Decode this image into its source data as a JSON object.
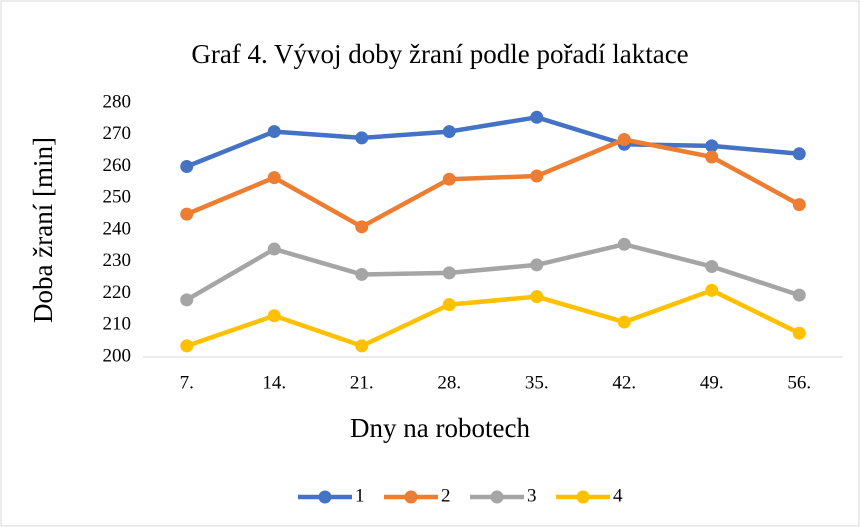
{
  "chart_data": {
    "type": "line",
    "title": "Graf 4. Vývoj doby žraní podle pořadí laktace",
    "x_label": "Dny na robotech",
    "y_label": "Doba žraní [min]",
    "categories": [
      "7.",
      "14.",
      "21.",
      "28.",
      "35.",
      "42.",
      "49.",
      "56."
    ],
    "series": [
      {
        "name": "1",
        "color": "#4472c4",
        "values": [
          260,
          271,
          269,
          271,
          275.5,
          267,
          266.5,
          264
        ]
      },
      {
        "name": "2",
        "color": "#ed7d31",
        "values": [
          245,
          256.5,
          241,
          256,
          257,
          268.5,
          263,
          248
        ]
      },
      {
        "name": "3",
        "color": "#a5a5a5",
        "values": [
          218,
          234,
          226,
          226.5,
          229,
          235.5,
          228.5,
          219.5
        ]
      },
      {
        "name": "4",
        "color": "#ffc000",
        "values": [
          203.5,
          213,
          203.5,
          216.5,
          219,
          211,
          221,
          207.5
        ]
      }
    ],
    "ylim": [
      200,
      280
    ],
    "yticks": [
      200,
      210,
      220,
      230,
      240,
      250,
      260,
      270,
      280
    ],
    "grid": false,
    "legend": "bottom"
  }
}
